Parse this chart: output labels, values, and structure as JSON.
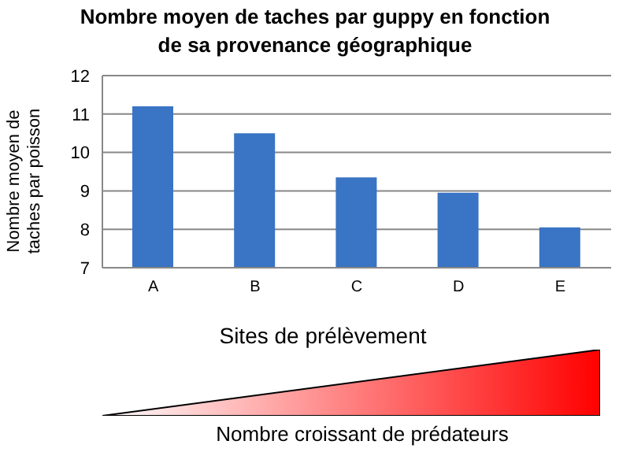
{
  "chart_data": {
    "type": "bar",
    "title": "Nombre moyen de taches par guppy en fonction de sa provenance géographique",
    "xlabel": "Sites de prélèvement",
    "ylabel": "Nombre moyen de taches par poisson",
    "categories": [
      "A",
      "B",
      "C",
      "D",
      "E"
    ],
    "values": [
      11.2,
      10.5,
      9.35,
      8.95,
      8.05
    ],
    "color": "#3a74c4",
    "ylim": [
      7,
      12
    ],
    "yticks": [
      7,
      8,
      9,
      10,
      11,
      12
    ],
    "grid": "y",
    "annotations": [
      "Nombre croissant de prédateurs"
    ]
  }
}
